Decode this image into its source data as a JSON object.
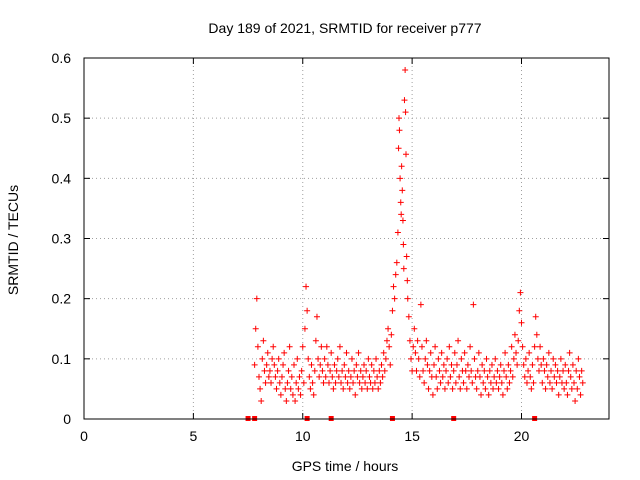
{
  "chart_data": {
    "type": "scatter",
    "title": "Day 189 of 2021, SRMTID for receiver p777",
    "xlabel": "GPS time / hours",
    "ylabel": "SRMTID / TECUs",
    "xlim": [
      0,
      24
    ],
    "ylim": [
      0,
      0.6
    ],
    "xticks": [
      0,
      5,
      10,
      15,
      20
    ],
    "yticks": [
      0,
      0.1,
      0.2,
      0.3,
      0.4,
      0.5,
      0.6
    ],
    "grid": true,
    "series": [
      {
        "name": "SRMTID",
        "color": "#ff0000",
        "marker": "+",
        "points": [
          [
            7.8,
            0.09
          ],
          [
            7.85,
            0.15
          ],
          [
            7.9,
            0.2
          ],
          [
            7.95,
            0.12
          ],
          [
            8.0,
            0.07
          ],
          [
            8.05,
            0.05
          ],
          [
            8.1,
            0.03
          ],
          [
            8.15,
            0.1
          ],
          [
            8.2,
            0.13
          ],
          [
            8.25,
            0.08
          ],
          [
            8.3,
            0.06
          ],
          [
            8.35,
            0.09
          ],
          [
            8.4,
            0.11
          ],
          [
            8.45,
            0.07
          ],
          [
            8.5,
            0.08
          ],
          [
            8.55,
            0.06
          ],
          [
            8.6,
            0.1
          ],
          [
            8.65,
            0.12
          ],
          [
            8.7,
            0.09
          ],
          [
            8.75,
            0.07
          ],
          [
            8.8,
            0.05
          ],
          [
            8.85,
            0.08
          ],
          [
            8.9,
            0.1
          ],
          [
            8.95,
            0.06
          ],
          [
            9.0,
            0.04
          ],
          [
            9.05,
            0.07
          ],
          [
            9.1,
            0.09
          ],
          [
            9.15,
            0.11
          ],
          [
            9.2,
            0.05
          ],
          [
            9.25,
            0.03
          ],
          [
            9.3,
            0.06
          ],
          [
            9.35,
            0.08
          ],
          [
            9.4,
            0.12
          ],
          [
            9.45,
            0.05
          ],
          [
            9.5,
            0.07
          ],
          [
            9.55,
            0.04
          ],
          [
            9.6,
            0.09
          ],
          [
            9.65,
            0.03
          ],
          [
            9.7,
            0.06
          ],
          [
            9.75,
            0.1
          ],
          [
            9.8,
            0.05
          ],
          [
            9.85,
            0.07
          ],
          [
            9.9,
            0.04
          ],
          [
            9.95,
            0.08
          ],
          [
            10.0,
            0.12
          ],
          [
            10.05,
            0.06
          ],
          [
            10.1,
            0.15
          ],
          [
            10.15,
            0.22
          ],
          [
            10.2,
            0.18
          ],
          [
            10.25,
            0.1
          ],
          [
            10.3,
            0.07
          ],
          [
            10.35,
            0.05
          ],
          [
            10.4,
            0.09
          ],
          [
            10.45,
            0.06
          ],
          [
            10.5,
            0.04
          ],
          [
            10.55,
            0.08
          ],
          [
            10.6,
            0.13
          ],
          [
            10.65,
            0.17
          ],
          [
            10.7,
            0.1
          ],
          [
            10.75,
            0.07
          ],
          [
            10.8,
            0.09
          ],
          [
            10.85,
            0.12
          ],
          [
            10.9,
            0.08
          ],
          [
            10.95,
            0.06
          ],
          [
            11.0,
            0.1
          ],
          [
            11.05,
            0.07
          ],
          [
            11.1,
            0.12
          ],
          [
            11.15,
            0.09
          ],
          [
            11.2,
            0.06
          ],
          [
            11.25,
            0.08
          ],
          [
            11.3,
            0.11
          ],
          [
            11.35,
            0.07
          ],
          [
            11.4,
            0.05
          ],
          [
            11.45,
            0.09
          ],
          [
            11.5,
            0.06
          ],
          [
            11.55,
            0.08
          ],
          [
            11.6,
            0.1
          ],
          [
            11.65,
            0.07
          ],
          [
            11.7,
            0.12
          ],
          [
            11.75,
            0.06
          ],
          [
            11.8,
            0.08
          ],
          [
            11.85,
            0.05
          ],
          [
            11.9,
            0.09
          ],
          [
            11.95,
            0.07
          ],
          [
            12.0,
            0.11
          ],
          [
            12.05,
            0.06
          ],
          [
            12.1,
            0.08
          ],
          [
            12.15,
            0.05
          ],
          [
            12.2,
            0.07
          ],
          [
            12.25,
            0.1
          ],
          [
            12.3,
            0.06
          ],
          [
            12.35,
            0.08
          ],
          [
            12.4,
            0.04
          ],
          [
            12.45,
            0.09
          ],
          [
            12.5,
            0.07
          ],
          [
            12.55,
            0.11
          ],
          [
            12.6,
            0.06
          ],
          [
            12.65,
            0.08
          ],
          [
            12.7,
            0.05
          ],
          [
            12.75,
            0.07
          ],
          [
            12.8,
            0.09
          ],
          [
            12.85,
            0.06
          ],
          [
            12.9,
            0.08
          ],
          [
            12.95,
            0.05
          ],
          [
            13.0,
            0.1
          ],
          [
            13.05,
            0.07
          ],
          [
            13.1,
            0.06
          ],
          [
            13.15,
            0.09
          ],
          [
            13.2,
            0.05
          ],
          [
            13.25,
            0.08
          ],
          [
            13.3,
            0.06
          ],
          [
            13.35,
            0.1
          ],
          [
            13.4,
            0.07
          ],
          [
            13.45,
            0.05
          ],
          [
            13.5,
            0.08
          ],
          [
            13.55,
            0.06
          ],
          [
            13.6,
            0.09
          ],
          [
            13.65,
            0.07
          ],
          [
            13.7,
            0.11
          ],
          [
            13.75,
            0.08
          ],
          [
            13.8,
            0.1
          ],
          [
            13.85,
            0.13
          ],
          [
            13.9,
            0.15
          ],
          [
            13.95,
            0.12
          ],
          [
            14.0,
            0.09
          ],
          [
            14.05,
            0.14
          ],
          [
            14.1,
            0.18
          ],
          [
            14.15,
            0.22
          ],
          [
            14.2,
            0.2
          ],
          [
            14.25,
            0.24
          ],
          [
            14.3,
            0.26
          ],
          [
            14.35,
            0.31
          ],
          [
            14.38,
            0.45
          ],
          [
            14.4,
            0.5
          ],
          [
            14.42,
            0.48
          ],
          [
            14.45,
            0.4
          ],
          [
            14.48,
            0.36
          ],
          [
            14.5,
            0.34
          ],
          [
            14.52,
            0.42
          ],
          [
            14.55,
            0.38
          ],
          [
            14.58,
            0.33
          ],
          [
            14.6,
            0.29
          ],
          [
            14.62,
            0.25
          ],
          [
            14.65,
            0.53
          ],
          [
            14.68,
            0.58
          ],
          [
            14.7,
            0.51
          ],
          [
            14.72,
            0.44
          ],
          [
            14.75,
            0.27
          ],
          [
            14.78,
            0.23
          ],
          [
            14.8,
            0.2
          ],
          [
            14.85,
            0.17
          ],
          [
            14.9,
            0.13
          ],
          [
            14.95,
            0.1
          ],
          [
            15.0,
            0.08
          ],
          [
            15.05,
            0.12
          ],
          [
            15.1,
            0.15
          ],
          [
            15.15,
            0.11
          ],
          [
            15.2,
            0.08
          ],
          [
            15.25,
            0.13
          ],
          [
            15.3,
            0.1
          ],
          [
            15.35,
            0.07
          ],
          [
            15.4,
            0.19
          ],
          [
            15.45,
            0.12
          ],
          [
            15.5,
            0.08
          ],
          [
            15.55,
            0.06
          ],
          [
            15.6,
            0.1
          ],
          [
            15.65,
            0.13
          ],
          [
            15.7,
            0.09
          ],
          [
            15.75,
            0.05
          ],
          [
            15.8,
            0.08
          ],
          [
            15.85,
            0.11
          ],
          [
            15.9,
            0.07
          ],
          [
            15.95,
            0.04
          ],
          [
            16.0,
            0.09
          ],
          [
            16.05,
            0.12
          ],
          [
            16.1,
            0.07
          ],
          [
            16.15,
            0.05
          ],
          [
            16.2,
            0.1
          ],
          [
            16.25,
            0.08
          ],
          [
            16.3,
            0.06
          ],
          [
            16.35,
            0.11
          ],
          [
            16.4,
            0.07
          ],
          [
            16.45,
            0.09
          ],
          [
            16.5,
            0.05
          ],
          [
            16.55,
            0.08
          ],
          [
            16.6,
            0.1
          ],
          [
            16.65,
            0.06
          ],
          [
            16.7,
            0.12
          ],
          [
            16.75,
            0.07
          ],
          [
            16.8,
            0.09
          ],
          [
            16.85,
            0.05
          ],
          [
            16.9,
            0.08
          ],
          [
            16.95,
            0.11
          ],
          [
            17.0,
            0.06
          ],
          [
            17.05,
            0.09
          ],
          [
            17.1,
            0.13
          ],
          [
            17.15,
            0.07
          ],
          [
            17.2,
            0.05
          ],
          [
            17.25,
            0.1
          ],
          [
            17.3,
            0.08
          ],
          [
            17.35,
            0.06
          ],
          [
            17.4,
            0.11
          ],
          [
            17.45,
            0.08
          ],
          [
            17.5,
            0.05
          ],
          [
            17.55,
            0.09
          ],
          [
            17.6,
            0.07
          ],
          [
            17.65,
            0.12
          ],
          [
            17.7,
            0.08
          ],
          [
            17.75,
            0.06
          ],
          [
            17.8,
            0.19
          ],
          [
            17.85,
            0.1
          ],
          [
            17.9,
            0.07
          ],
          [
            17.95,
            0.05
          ],
          [
            18.0,
            0.08
          ],
          [
            18.05,
            0.11
          ],
          [
            18.1,
            0.07
          ],
          [
            18.15,
            0.04
          ],
          [
            18.2,
            0.09
          ],
          [
            18.25,
            0.06
          ],
          [
            18.3,
            0.08
          ],
          [
            18.35,
            0.05
          ],
          [
            18.4,
            0.1
          ],
          [
            18.45,
            0.07
          ],
          [
            18.5,
            0.04
          ],
          [
            18.55,
            0.08
          ],
          [
            18.6,
            0.06
          ],
          [
            18.65,
            0.09
          ],
          [
            18.7,
            0.05
          ],
          [
            18.75,
            0.07
          ],
          [
            18.8,
            0.1
          ],
          [
            18.85,
            0.06
          ],
          [
            18.9,
            0.08
          ],
          [
            18.95,
            0.05
          ],
          [
            19.0,
            0.07
          ],
          [
            19.05,
            0.09
          ],
          [
            19.1,
            0.06
          ],
          [
            19.15,
            0.04
          ],
          [
            19.2,
            0.08
          ],
          [
            19.25,
            0.11
          ],
          [
            19.3,
            0.07
          ],
          [
            19.35,
            0.05
          ],
          [
            19.4,
            0.09
          ],
          [
            19.45,
            0.06
          ],
          [
            19.5,
            0.08
          ],
          [
            19.55,
            0.12
          ],
          [
            19.6,
            0.07
          ],
          [
            19.65,
            0.1
          ],
          [
            19.7,
            0.14
          ],
          [
            19.75,
            0.11
          ],
          [
            19.8,
            0.09
          ],
          [
            19.85,
            0.13
          ],
          [
            19.9,
            0.18
          ],
          [
            19.95,
            0.21
          ],
          [
            20.0,
            0.16
          ],
          [
            20.05,
            0.12
          ],
          [
            20.1,
            0.09
          ],
          [
            20.15,
            0.07
          ],
          [
            20.2,
            0.1
          ],
          [
            20.25,
            0.06
          ],
          [
            20.3,
            0.08
          ],
          [
            20.35,
            0.11
          ],
          [
            20.4,
            0.07
          ],
          [
            20.45,
            0.05
          ],
          [
            20.5,
            0.09
          ],
          [
            20.55,
            0.06
          ],
          [
            20.6,
            0.12
          ],
          [
            20.65,
            0.17
          ],
          [
            20.7,
            0.14
          ],
          [
            20.75,
            0.1
          ],
          [
            20.8,
            0.08
          ],
          [
            20.85,
            0.12
          ],
          [
            20.9,
            0.09
          ],
          [
            20.95,
            0.06
          ],
          [
            21.0,
            0.1
          ],
          [
            21.05,
            0.08
          ],
          [
            21.1,
            0.05
          ],
          [
            21.15,
            0.09
          ],
          [
            21.2,
            0.07
          ],
          [
            21.25,
            0.11
          ],
          [
            21.3,
            0.06
          ],
          [
            21.35,
            0.08
          ],
          [
            21.4,
            0.05
          ],
          [
            21.45,
            0.1
          ],
          [
            21.5,
            0.07
          ],
          [
            21.55,
            0.09
          ],
          [
            21.6,
            0.06
          ],
          [
            21.65,
            0.08
          ],
          [
            21.7,
            0.04
          ],
          [
            21.75,
            0.07
          ],
          [
            21.8,
            0.1
          ],
          [
            21.85,
            0.06
          ],
          [
            21.9,
            0.08
          ],
          [
            21.95,
            0.05
          ],
          [
            22.0,
            0.09
          ],
          [
            22.05,
            0.06
          ],
          [
            22.1,
            0.04
          ],
          [
            22.15,
            0.08
          ],
          [
            22.2,
            0.11
          ],
          [
            22.25,
            0.07
          ],
          [
            22.3,
            0.05
          ],
          [
            22.35,
            0.09
          ],
          [
            22.4,
            0.06
          ],
          [
            22.45,
            0.03
          ],
          [
            22.5,
            0.08
          ],
          [
            22.55,
            0.05
          ],
          [
            22.6,
            0.1
          ],
          [
            22.65,
            0.07
          ],
          [
            22.7,
            0.04
          ],
          [
            22.75,
            0.08
          ],
          [
            22.8,
            0.06
          ]
        ]
      }
    ],
    "gap_markers": [
      7.5,
      7.8,
      10.2,
      11.3,
      14.1,
      16.9,
      20.6
    ]
  }
}
